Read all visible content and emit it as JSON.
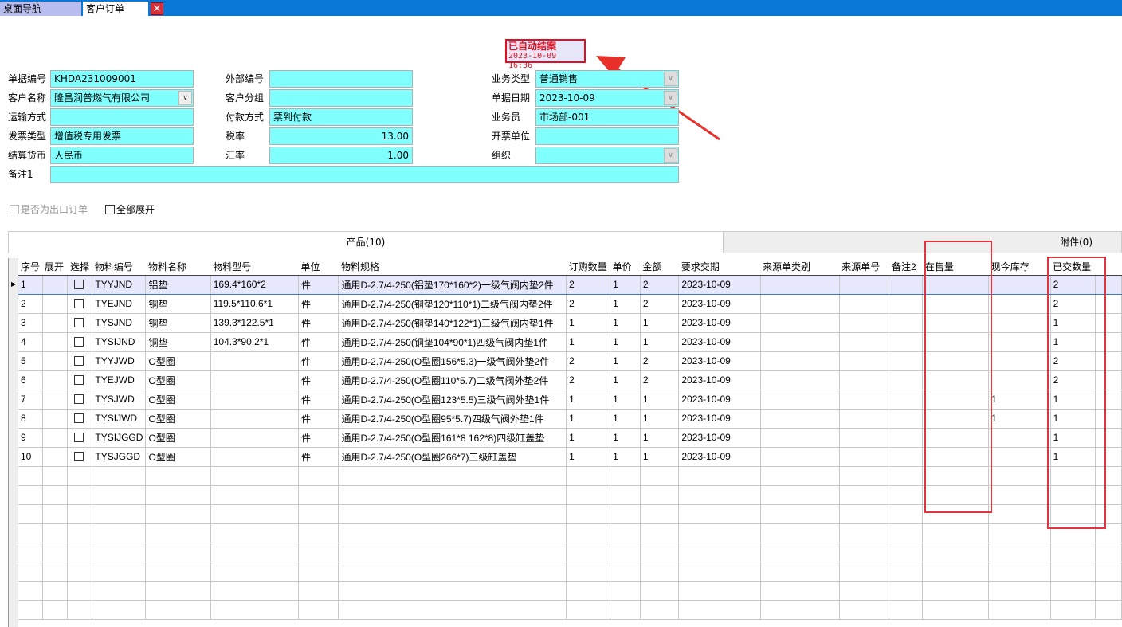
{
  "tabs": [
    {
      "label": "桌面导航"
    },
    {
      "label": "客户订单"
    }
  ],
  "status": {
    "title": "已自动结案",
    "time": "2023-10-09 16:36"
  },
  "form": {
    "doc_no": {
      "label": "单据编号",
      "value": "KHDA231009001"
    },
    "customer": {
      "label": "客户名称",
      "value": "隆昌润普燃气有限公司"
    },
    "shipping": {
      "label": "运输方式",
      "value": ""
    },
    "invoice_type": {
      "label": "发票类型",
      "value": "增值税专用发票"
    },
    "currency": {
      "label": "结算货币",
      "value": "人民币"
    },
    "remark1": {
      "label": "备注1",
      "value": ""
    },
    "external_no": {
      "label": "外部编号",
      "value": ""
    },
    "customer_group": {
      "label": "客户分组",
      "value": ""
    },
    "payment": {
      "label": "付款方式",
      "value": "票到付款"
    },
    "tax_rate": {
      "label": "税率",
      "value": "13.00"
    },
    "exchange_rate": {
      "label": "汇率",
      "value": "1.00"
    },
    "business_type": {
      "label": "业务类型",
      "value": "普通销售"
    },
    "doc_date": {
      "label": "单据日期",
      "value": "2023-10-09"
    },
    "salesman": {
      "label": "业务员",
      "value": "市场部-001"
    },
    "invoice_unit": {
      "label": "开票单位",
      "value": ""
    },
    "org": {
      "label": "组织",
      "value": ""
    }
  },
  "options": {
    "export_order": "是否为出口订单",
    "expand_all": "全部展开"
  },
  "panel_tabs": {
    "products": "产品(10)",
    "attachments": "附件(0)"
  },
  "columns": [
    "序号",
    "展开",
    "选择",
    "物料编号",
    "物料名称",
    "物料型号",
    "单位",
    "物料规格",
    "订购数量",
    "单价",
    "金额",
    "要求交期",
    "来源单类别",
    "来源单号",
    "备注2",
    "在售量",
    "现今库存",
    "已交数量",
    ""
  ],
  "rows": [
    [
      "1",
      "",
      "",
      "TYYJND",
      "铝垫",
      "169.4*160*2",
      "件",
      "通用D-2.7/4-250(铝垫170*160*2)一级气阀内垫2件",
      "2",
      "1",
      "2",
      "2023-10-09",
      "",
      "",
      "",
      "",
      "",
      "2",
      ""
    ],
    [
      "2",
      "",
      "",
      "TYEJND",
      "铜垫",
      "119.5*110.6*1",
      "件",
      "通用D-2.7/4-250(铜垫120*110*1)二级气阀内垫2件",
      "2",
      "1",
      "2",
      "2023-10-09",
      "",
      "",
      "",
      "",
      "",
      "2",
      ""
    ],
    [
      "3",
      "",
      "",
      "TYSJND",
      "铜垫",
      "139.3*122.5*1",
      "件",
      "通用D-2.7/4-250(铜垫140*122*1)三级气阀内垫1件",
      "1",
      "1",
      "1",
      "2023-10-09",
      "",
      "",
      "",
      "",
      "",
      "1",
      ""
    ],
    [
      "4",
      "",
      "",
      "TYSIJND",
      "铜垫",
      "104.3*90.2*1",
      "件",
      "通用D-2.7/4-250(铜垫104*90*1)四级气阀内垫1件",
      "1",
      "1",
      "1",
      "2023-10-09",
      "",
      "",
      "",
      "",
      "",
      "1",
      ""
    ],
    [
      "5",
      "",
      "",
      "TYYJWD",
      "O型圈",
      "",
      "件",
      "通用D-2.7/4-250(O型圈156*5.3)一级气阀外垫2件",
      "2",
      "1",
      "2",
      "2023-10-09",
      "",
      "",
      "",
      "",
      "",
      "2",
      ""
    ],
    [
      "6",
      "",
      "",
      "TYEJWD",
      "O型圈",
      "",
      "件",
      "通用D-2.7/4-250(O型圈110*5.7)二级气阀外垫2件",
      "2",
      "1",
      "2",
      "2023-10-09",
      "",
      "",
      "",
      "",
      "",
      "2",
      ""
    ],
    [
      "7",
      "",
      "",
      "TYSJWD",
      "O型圈",
      "",
      "件",
      "通用D-2.7/4-250(O型圈123*5.5)三级气阀外垫1件",
      "1",
      "1",
      "1",
      "2023-10-09",
      "",
      "",
      "",
      "",
      "1",
      "1",
      ""
    ],
    [
      "8",
      "",
      "",
      "TYSIJWD",
      "O型圈",
      "",
      "件",
      "通用D-2.7/4-250(O型圈95*5.7)四级气阀外垫1件",
      "1",
      "1",
      "1",
      "2023-10-09",
      "",
      "",
      "",
      "",
      "1",
      "1",
      ""
    ],
    [
      "9",
      "",
      "",
      "TYSIJGGD",
      "O型圈",
      "",
      "件",
      "通用D-2.7/4-250(O型圈161*8 162*8)四级缸盖垫",
      "1",
      "1",
      "1",
      "2023-10-09",
      "",
      "",
      "",
      "",
      "",
      "1",
      ""
    ],
    [
      "10",
      "",
      "",
      "TYSJGGD",
      "O型圈",
      "",
      "件",
      "通用D-2.7/4-250(O型圈266*7)三级缸盖垫",
      "1",
      "1",
      "1",
      "2023-10-09",
      "",
      "",
      "",
      "",
      "",
      "1",
      ""
    ]
  ],
  "colors": {
    "field": "#80ffff",
    "highlight": "#e0353d",
    "titlebar": "#0a78d7"
  }
}
